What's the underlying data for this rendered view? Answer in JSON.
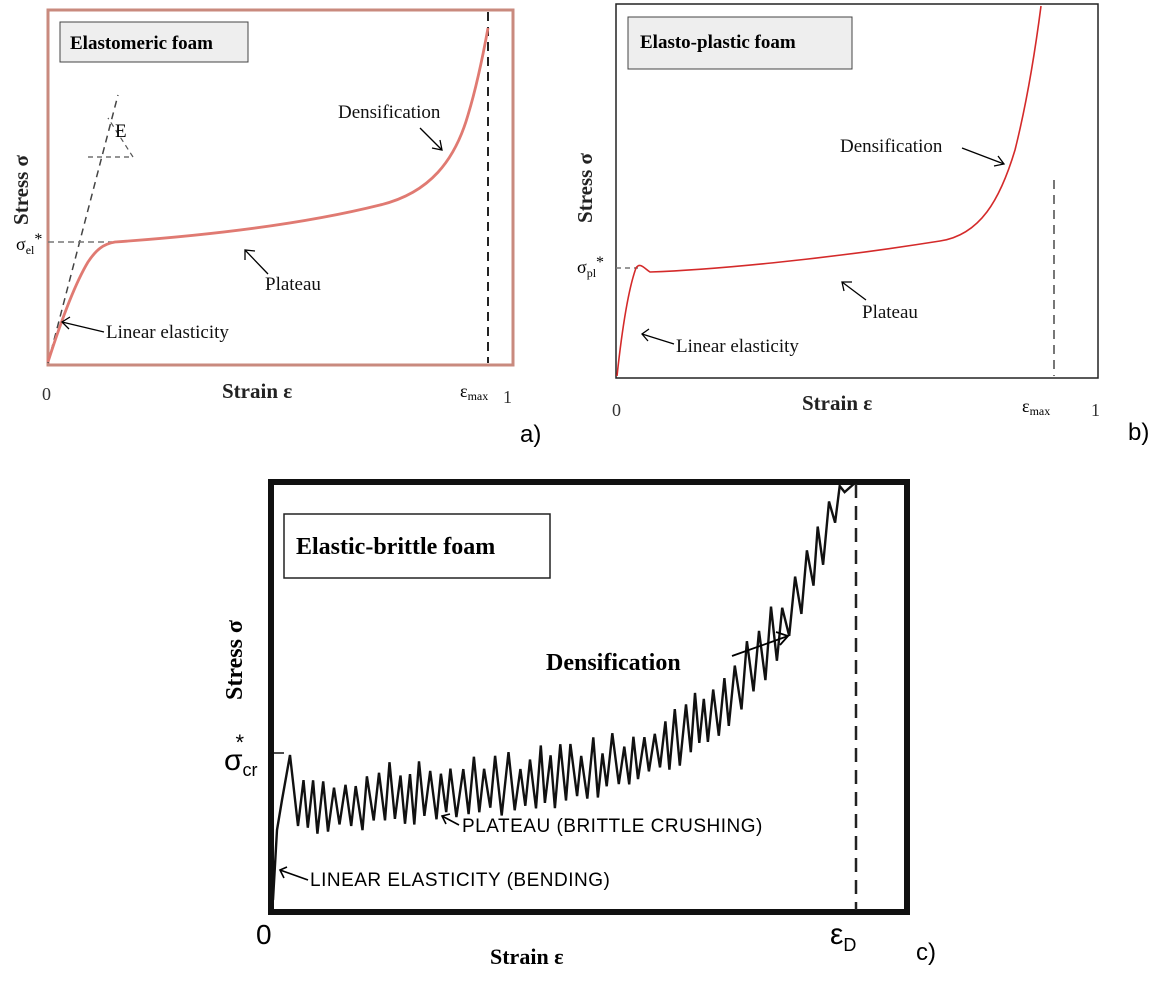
{
  "panels": {
    "a": {
      "title": "Elastomeric foam",
      "ylabel": "Stress σ",
      "xlabel": "Strain ε",
      "tick_zero": "0",
      "tick_one": "1",
      "tick_emax_base": "ε",
      "tick_emax_sub": "max",
      "yield_base": "σ",
      "yield_sub": "el",
      "yield_star": "*",
      "modulus": "E",
      "ann_densification": "Densification",
      "ann_plateau": "Plateau",
      "ann_linear": "Linear elasticity",
      "letter": "a)"
    },
    "b": {
      "title": "Elasto-plastic foam",
      "ylabel": "Stress σ",
      "xlabel": "Strain ε",
      "tick_zero": "0",
      "tick_one": "1",
      "tick_emax_base": "ε",
      "tick_emax_sub": "max",
      "yield_base": "σ",
      "yield_sub": "pl",
      "yield_star": "*",
      "ann_densification": "Densification",
      "ann_plateau": "Plateau",
      "ann_linear": "Linear elasticity",
      "letter": "b)"
    },
    "c": {
      "title": "Elastic-brittle foam",
      "ylabel": "Stress σ",
      "xlabel": "Strain ε",
      "tick_zero": "0",
      "tick_d_base": "ε",
      "tick_d_sub": "D",
      "yield_base": "σ",
      "yield_sub": "cr",
      "yield_star": "*",
      "ann_densification": "Densification",
      "ann_plateau": "PLATEAU (BRITTLE CRUSHING)",
      "ann_linear": "LINEAR ELASTICITY (BENDING)",
      "letter": "c)"
    }
  },
  "colors": {
    "curve_a": "#e07a72",
    "curve_b": "#d42a2a",
    "curve_c": "#111111",
    "frame_a": "#c98a7e",
    "dashed": "#555555"
  }
}
